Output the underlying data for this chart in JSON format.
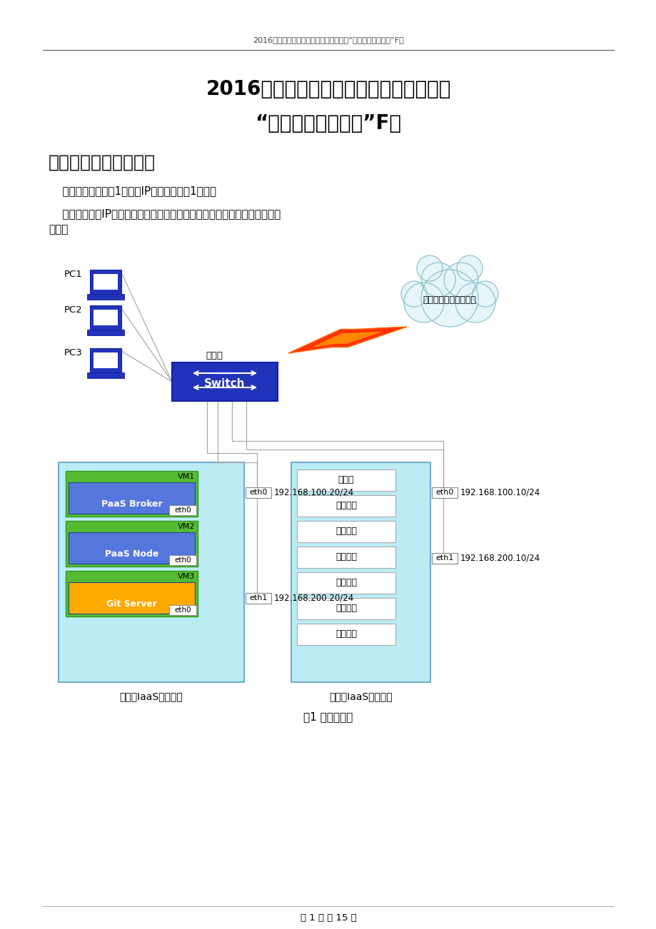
{
  "header_text": "2016年全国职业院校技能大赛（高职组）“云计算技术与应用”F卷",
  "title1": "2016年全国职业院校技能大赛（高职组）",
  "title2": "“云计算技术与应用”F卷",
  "section1": "第一部分：云平台架构",
  "para1": "    赛项系统架构如图1所示，IP地址规划如表1所示。",
  "para2": "    根据架构图及IP地址规划表，检查硬件连线及网络设备配置，确保网络连接",
  "para2b": "正常。",
  "cloud_label": "竞赛系统＋云存储服务",
  "switch_label": "交换机",
  "pc_labels": [
    "PC1",
    "PC2",
    "PC3"
  ],
  "left_box_label": "云计算IaaS计算节点",
  "right_box_label": "云计算IaaS控制节点",
  "vm_labels": [
    "VM1",
    "VM2",
    "VM3"
  ],
  "vm_inner_labels": [
    "PaaS Broker",
    "PaaS Node",
    "Git Server"
  ],
  "vm_inner_colors": [
    "#5577DD",
    "#5577DD",
    "#FFAA00"
  ],
  "vm_outer_color": "#55BB33",
  "services": [
    "数据库",
    "消息服务",
    "认证服务",
    "镜像服务",
    "网络服务",
    "存储服务",
    "整合服务"
  ],
  "ip_left1": "192.168.100.20/24",
  "ip_left2": "192.168.200.20/24",
  "ip_right1": "192.168.100.10/24",
  "ip_right2": "192.168.200.10/24",
  "fig_caption": "图1 系统架构图",
  "footer": "第 1 页 共 15 页",
  "bg_color": "#FFFFFF",
  "panel_color": "#BBECF4",
  "panel_edge": "#77AACC",
  "switch_color": "#2233BB",
  "pc_color": "#3333BB",
  "line_color": "#AAAAAA",
  "eth_box_color": "#FFFFFF",
  "service_box_color": "#FFFFFF"
}
